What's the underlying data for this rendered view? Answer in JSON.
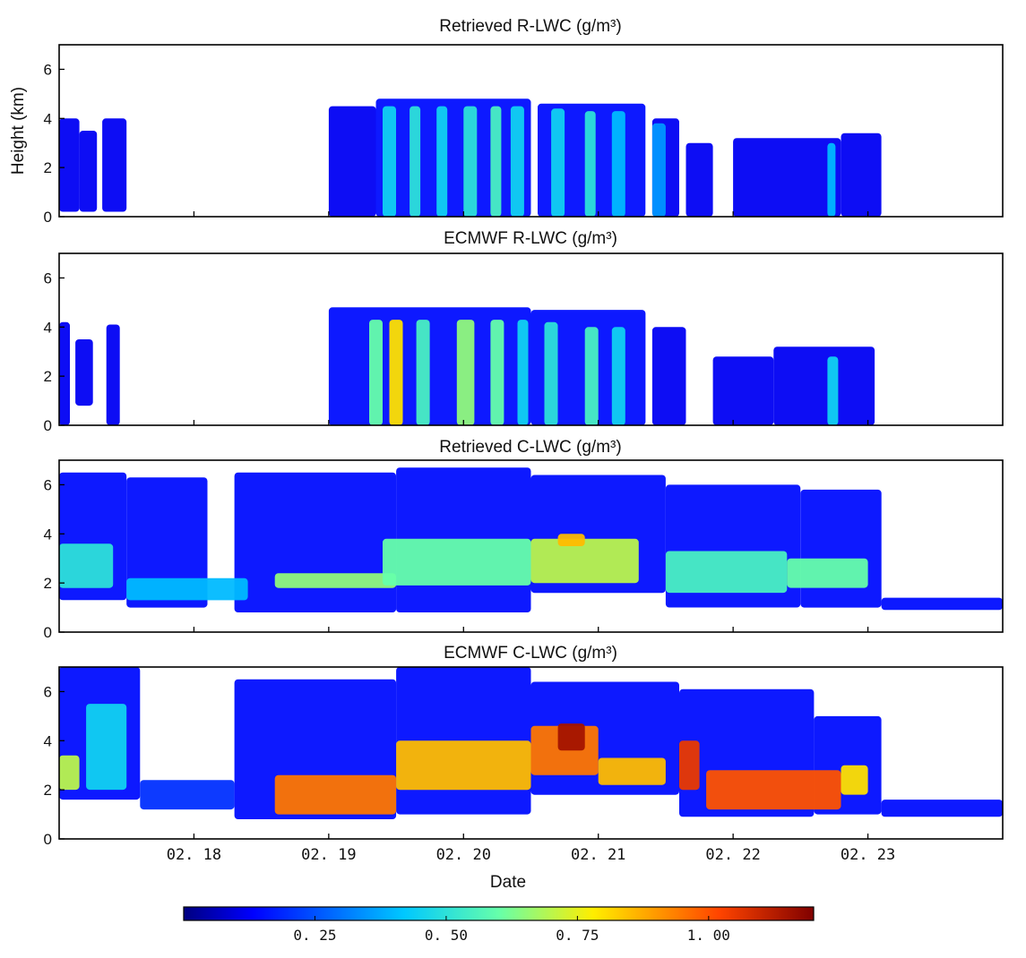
{
  "chart_data": [
    {
      "type": "heatmap",
      "title": "Retrieved R-LWC (g/m³)",
      "ylabel": "Height (km)",
      "ylim": [
        0,
        7
      ],
      "yticks": [
        "0",
        "2",
        "4",
        "6"
      ],
      "x_tick_labels": [
        "02. 18",
        "02. 19",
        "02. 20",
        "02. 21",
        "02. 22",
        "02. 23"
      ],
      "cells": [
        {
          "x": [
            17.0,
            17.15
          ],
          "y": [
            0.2,
            4.0
          ],
          "v": 0.12
        },
        {
          "x": [
            17.15,
            17.28
          ],
          "y": [
            0.2,
            3.5
          ],
          "v": 0.12
        },
        {
          "x": [
            17.32,
            17.5
          ],
          "y": [
            0.2,
            4.0
          ],
          "v": 0.12
        },
        {
          "x": [
            19.0,
            19.35
          ],
          "y": [
            0.0,
            4.5
          ],
          "v": 0.12
        },
        {
          "x": [
            19.35,
            20.5
          ],
          "y": [
            0.0,
            4.8
          ],
          "v": 0.15
        },
        {
          "x": [
            20.55,
            21.35
          ],
          "y": [
            0.0,
            4.6
          ],
          "v": 0.15
        },
        {
          "x": [
            21.4,
            21.6
          ],
          "y": [
            0.0,
            4.0
          ],
          "v": 0.12
        },
        {
          "x": [
            21.65,
            21.85
          ],
          "y": [
            0.0,
            3.0
          ],
          "v": 0.12
        },
        {
          "x": [
            22.0,
            22.8
          ],
          "y": [
            0.0,
            3.2
          ],
          "v": 0.12
        },
        {
          "x": [
            22.8,
            23.1
          ],
          "y": [
            0.0,
            3.4
          ],
          "v": 0.12
        },
        {
          "x": [
            19.4,
            19.5
          ],
          "y": [
            0.0,
            4.5
          ],
          "v": 0.45
        },
        {
          "x": [
            19.6,
            19.68
          ],
          "y": [
            0.0,
            4.5
          ],
          "v": 0.5
        },
        {
          "x": [
            19.8,
            19.88
          ],
          "y": [
            0.0,
            4.5
          ],
          "v": 0.45
        },
        {
          "x": [
            20.0,
            20.1
          ],
          "y": [
            0.0,
            4.5
          ],
          "v": 0.5
        },
        {
          "x": [
            20.2,
            20.28
          ],
          "y": [
            0.0,
            4.5
          ],
          "v": 0.55
        },
        {
          "x": [
            20.35,
            20.45
          ],
          "y": [
            0.0,
            4.5
          ],
          "v": 0.45
        },
        {
          "x": [
            20.65,
            20.75
          ],
          "y": [
            0.0,
            4.4
          ],
          "v": 0.45
        },
        {
          "x": [
            20.9,
            20.98
          ],
          "y": [
            0.0,
            4.3
          ],
          "v": 0.5
        },
        {
          "x": [
            21.1,
            21.2
          ],
          "y": [
            0.0,
            4.3
          ],
          "v": 0.4
        },
        {
          "x": [
            21.4,
            21.5
          ],
          "y": [
            0.0,
            3.8
          ],
          "v": 0.35
        },
        {
          "x": [
            22.7,
            22.76
          ],
          "y": [
            0.0,
            3.0
          ],
          "v": 0.4
        }
      ]
    },
    {
      "type": "heatmap",
      "title": "ECMWF R-LWC (g/m³)",
      "ylim": [
        0,
        7
      ],
      "yticks": [
        "0",
        "2",
        "4",
        "6"
      ],
      "cells": [
        {
          "x": [
            17.0,
            17.08
          ],
          "y": [
            0.0,
            4.2
          ],
          "v": 0.12
        },
        {
          "x": [
            17.12,
            17.25
          ],
          "y": [
            0.8,
            3.5
          ],
          "v": 0.12
        },
        {
          "x": [
            17.35,
            17.45
          ],
          "y": [
            0.0,
            4.1
          ],
          "v": 0.12
        },
        {
          "x": [
            19.0,
            20.5
          ],
          "y": [
            0.0,
            4.8
          ],
          "v": 0.15
        },
        {
          "x": [
            20.5,
            21.35
          ],
          "y": [
            0.0,
            4.7
          ],
          "v": 0.15
        },
        {
          "x": [
            21.4,
            21.65
          ],
          "y": [
            0.0,
            4.0
          ],
          "v": 0.12
        },
        {
          "x": [
            21.85,
            22.3
          ],
          "y": [
            0.0,
            2.8
          ],
          "v": 0.12
        },
        {
          "x": [
            22.3,
            23.05
          ],
          "y": [
            0.0,
            3.2
          ],
          "v": 0.12
        },
        {
          "x": [
            19.3,
            19.4
          ],
          "y": [
            0.0,
            4.3
          ],
          "v": 0.6
        },
        {
          "x": [
            19.45,
            19.55
          ],
          "y": [
            0.0,
            4.3
          ],
          "v": 0.8
        },
        {
          "x": [
            19.65,
            19.75
          ],
          "y": [
            0.0,
            4.3
          ],
          "v": 0.55
        },
        {
          "x": [
            19.95,
            20.08
          ],
          "y": [
            0.0,
            4.3
          ],
          "v": 0.65
        },
        {
          "x": [
            20.2,
            20.3
          ],
          "y": [
            0.0,
            4.3
          ],
          "v": 0.6
        },
        {
          "x": [
            20.4,
            20.48
          ],
          "y": [
            0.0,
            4.3
          ],
          "v": 0.45
        },
        {
          "x": [
            20.6,
            20.7
          ],
          "y": [
            0.0,
            4.2
          ],
          "v": 0.5
        },
        {
          "x": [
            20.9,
            21.0
          ],
          "y": [
            0.0,
            4.0
          ],
          "v": 0.55
        },
        {
          "x": [
            21.1,
            21.2
          ],
          "y": [
            0.0,
            4.0
          ],
          "v": 0.45
        },
        {
          "x": [
            22.7,
            22.78
          ],
          "y": [
            0.0,
            2.8
          ],
          "v": 0.45
        }
      ]
    },
    {
      "type": "heatmap",
      "title": "Retrieved C-LWC (g/m³)",
      "ylim": [
        0,
        7
      ],
      "yticks": [
        "0",
        "2",
        "4",
        "6"
      ],
      "cells": [
        {
          "x": [
            17.0,
            17.5
          ],
          "y": [
            1.3,
            6.5
          ],
          "v": 0.15
        },
        {
          "x": [
            17.5,
            18.1
          ],
          "y": [
            1.0,
            6.3
          ],
          "v": 0.15
        },
        {
          "x": [
            18.3,
            19.5
          ],
          "y": [
            0.8,
            6.5
          ],
          "v": 0.15
        },
        {
          "x": [
            19.5,
            20.5
          ],
          "y": [
            0.8,
            6.7
          ],
          "v": 0.15
        },
        {
          "x": [
            20.5,
            21.5
          ],
          "y": [
            1.6,
            6.4
          ],
          "v": 0.15
        },
        {
          "x": [
            21.5,
            22.5
          ],
          "y": [
            1.0,
            6.0
          ],
          "v": 0.15
        },
        {
          "x": [
            22.5,
            23.1
          ],
          "y": [
            1.0,
            5.8
          ],
          "v": 0.15
        },
        {
          "x": [
            23.1,
            24.0
          ],
          "y": [
            0.9,
            1.4
          ],
          "v": 0.15
        },
        {
          "x": [
            17.0,
            17.4
          ],
          "y": [
            1.8,
            3.6
          ],
          "v": 0.5
        },
        {
          "x": [
            17.5,
            18.4
          ],
          "y": [
            1.3,
            2.2
          ],
          "v": 0.4
        },
        {
          "x": [
            18.6,
            19.5
          ],
          "y": [
            1.8,
            2.4
          ],
          "v": 0.65
        },
        {
          "x": [
            19.4,
            20.5
          ],
          "y": [
            1.9,
            3.8
          ],
          "v": 0.6
        },
        {
          "x": [
            20.5,
            21.3
          ],
          "y": [
            2.0,
            3.8
          ],
          "v": 0.7
        },
        {
          "x": [
            21.5,
            22.4
          ],
          "y": [
            1.6,
            3.3
          ],
          "v": 0.55
        },
        {
          "x": [
            22.4,
            23.0
          ],
          "y": [
            1.8,
            3.0
          ],
          "v": 0.6
        },
        {
          "x": [
            20.7,
            20.9
          ],
          "y": [
            3.5,
            4.0
          ],
          "v": 0.85
        }
      ]
    },
    {
      "type": "heatmap",
      "title": "ECMWF C-LWC (g/m³)",
      "ylim": [
        0,
        7
      ],
      "yticks": [
        "0",
        "2",
        "4",
        "6"
      ],
      "cells": [
        {
          "x": [
            17.0,
            17.6
          ],
          "y": [
            1.6,
            7.0
          ],
          "v": 0.15
        },
        {
          "x": [
            17.6,
            18.3
          ],
          "y": [
            1.2,
            2.4
          ],
          "v": 0.2
        },
        {
          "x": [
            18.3,
            19.5
          ],
          "y": [
            0.8,
            6.5
          ],
          "v": 0.15
        },
        {
          "x": [
            19.5,
            20.5
          ],
          "y": [
            1.0,
            7.0
          ],
          "v": 0.15
        },
        {
          "x": [
            20.5,
            21.6
          ],
          "y": [
            1.8,
            6.4
          ],
          "v": 0.15
        },
        {
          "x": [
            21.6,
            22.6
          ],
          "y": [
            0.9,
            6.1
          ],
          "v": 0.15
        },
        {
          "x": [
            22.6,
            23.1
          ],
          "y": [
            1.0,
            5.0
          ],
          "v": 0.15
        },
        {
          "x": [
            23.1,
            24.0
          ],
          "y": [
            0.9,
            1.6
          ],
          "v": 0.15
        },
        {
          "x": [
            17.0,
            17.15
          ],
          "y": [
            2.0,
            3.4
          ],
          "v": 0.7
        },
        {
          "x": [
            17.2,
            17.5
          ],
          "y": [
            2.0,
            5.5
          ],
          "v": 0.45
        },
        {
          "x": [
            18.6,
            19.5
          ],
          "y": [
            1.0,
            2.6
          ],
          "v": 0.95
        },
        {
          "x": [
            19.5,
            20.5
          ],
          "y": [
            2.0,
            4.0
          ],
          "v": 0.85
        },
        {
          "x": [
            20.5,
            21.0
          ],
          "y": [
            2.6,
            4.6
          ],
          "v": 0.95
        },
        {
          "x": [
            20.7,
            20.9
          ],
          "y": [
            3.6,
            4.7
          ],
          "v": 1.15
        },
        {
          "x": [
            21.0,
            21.5
          ],
          "y": [
            2.2,
            3.3
          ],
          "v": 0.85
        },
        {
          "x": [
            21.6,
            21.75
          ],
          "y": [
            2.0,
            4.0
          ],
          "v": 1.05
        },
        {
          "x": [
            21.8,
            22.8
          ],
          "y": [
            1.2,
            2.8
          ],
          "v": 1.0
        },
        {
          "x": [
            22.8,
            23.0
          ],
          "y": [
            1.8,
            3.0
          ],
          "v": 0.8
        }
      ]
    }
  ],
  "xlabel": "Date",
  "colorbar": {
    "range": [
      0,
      1.2
    ],
    "colormap": "jet",
    "tick_values": [
      0.25,
      0.5,
      0.75,
      1.0
    ],
    "tick_labels": [
      "0. 25",
      "0. 50",
      "0. 75",
      "1. 00"
    ]
  }
}
